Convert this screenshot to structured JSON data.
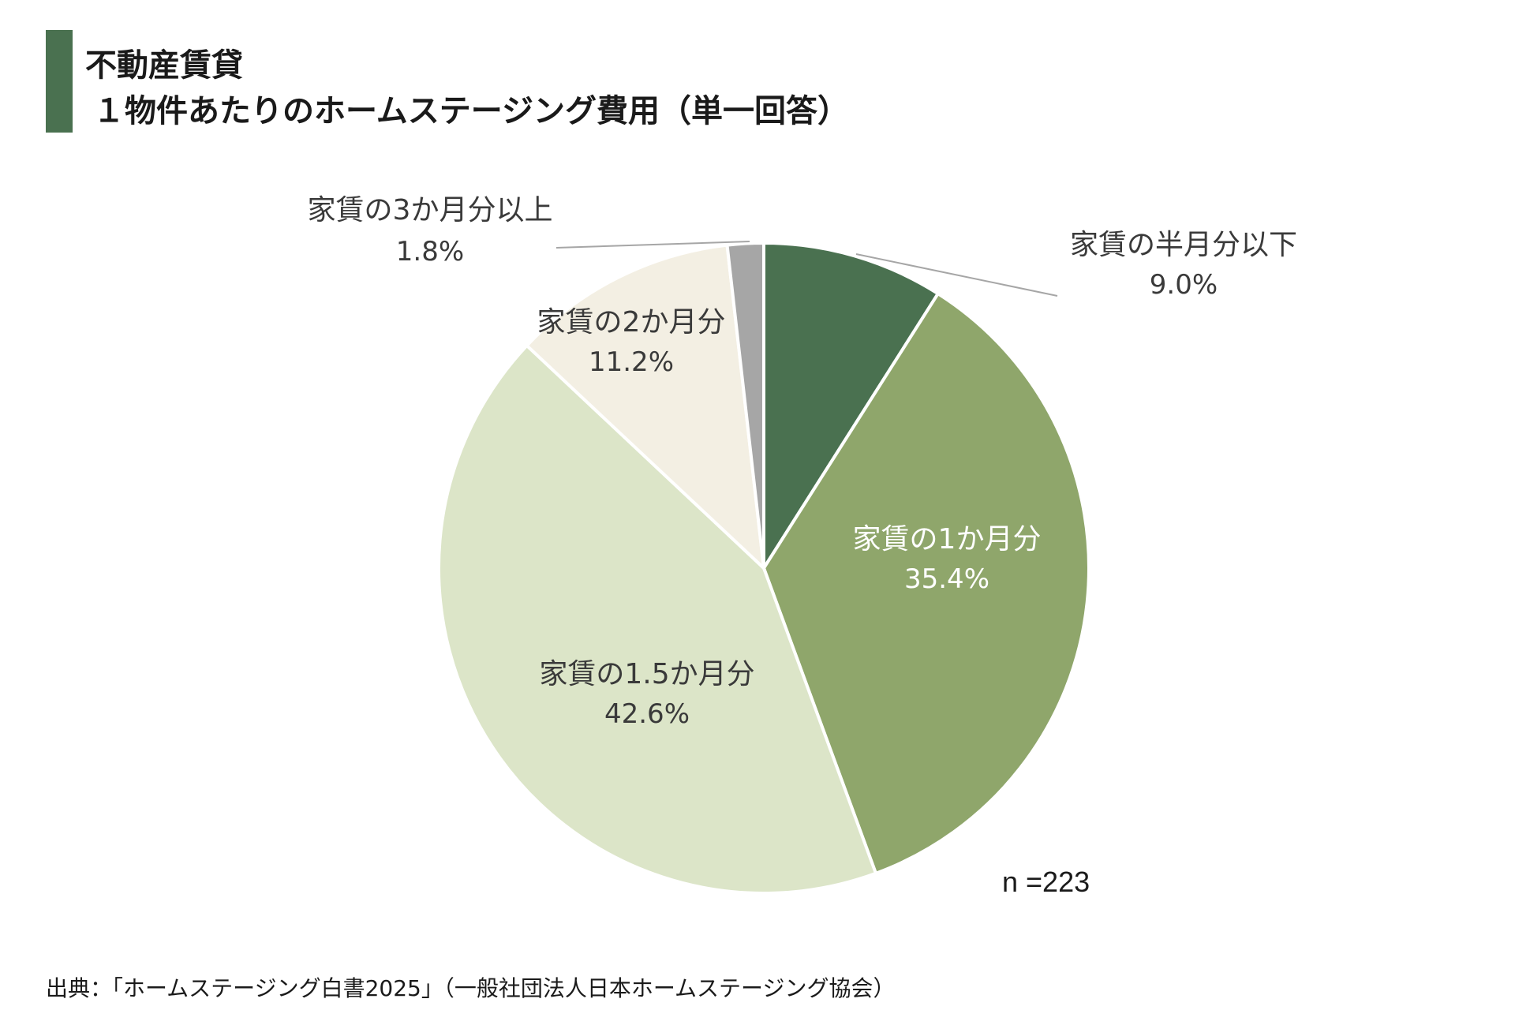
{
  "title": {
    "line1": "不動産賃貸",
    "line2": "１物件あたりのホームステージング費用（単一回答）"
  },
  "colors": {
    "title_accent": "#4a7150",
    "slices": [
      "#4a7150",
      "#8fa66b",
      "#dce5c8",
      "#f3efe3",
      "#a6a6a6"
    ]
  },
  "chart_data": {
    "type": "pie",
    "start_angle": "12 o'clock",
    "direction": "clockwise",
    "categories": [
      "家賃の半月分以下",
      "家賃の1か月分",
      "家賃の1.5か月分",
      "家賃の2か月分",
      "家賃の3か月分以上"
    ],
    "values": [
      9.0,
      35.4,
      42.6,
      11.2,
      1.8
    ],
    "value_labels": [
      "9.0%",
      "35.4%",
      "42.6%",
      "11.2%",
      "1.8%"
    ],
    "annotation": "n =223"
  },
  "source": "出典：「ホームステージング白書2025」（一般社団法人日本ホームステージング協会）"
}
